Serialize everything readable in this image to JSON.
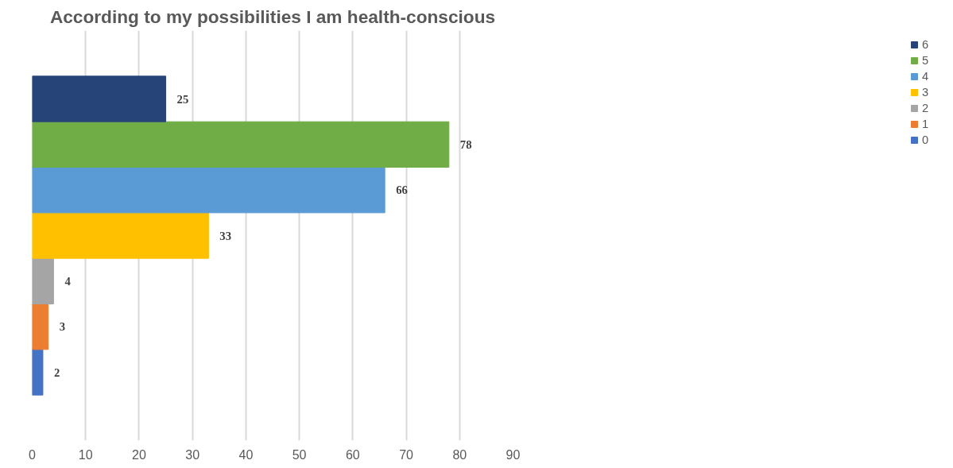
{
  "chart_data": {
    "type": "bar",
    "orientation": "horizontal",
    "title": "According to my possibilities I am health-conscious",
    "categories": [
      null
    ],
    "series": [
      {
        "name": "0",
        "color": "#4472c4",
        "values": [
          2
        ]
      },
      {
        "name": "1",
        "color": "#ed7d31",
        "values": [
          3
        ]
      },
      {
        "name": "2",
        "color": "#a5a5a5",
        "values": [
          4
        ]
      },
      {
        "name": "3",
        "color": "#ffc000",
        "values": [
          33
        ]
      },
      {
        "name": "4",
        "color": "#5b9bd5",
        "values": [
          66
        ]
      },
      {
        "name": "5",
        "color": "#70ad47",
        "values": [
          78
        ]
      },
      {
        "name": "6",
        "color": "#264478",
        "values": [
          25
        ]
      }
    ],
    "xlim": [
      0,
      90
    ],
    "xticks": [
      0,
      10,
      20,
      30,
      40,
      50,
      60,
      70,
      80,
      90
    ],
    "grid": "x",
    "legend": "right",
    "data_labels": true
  }
}
